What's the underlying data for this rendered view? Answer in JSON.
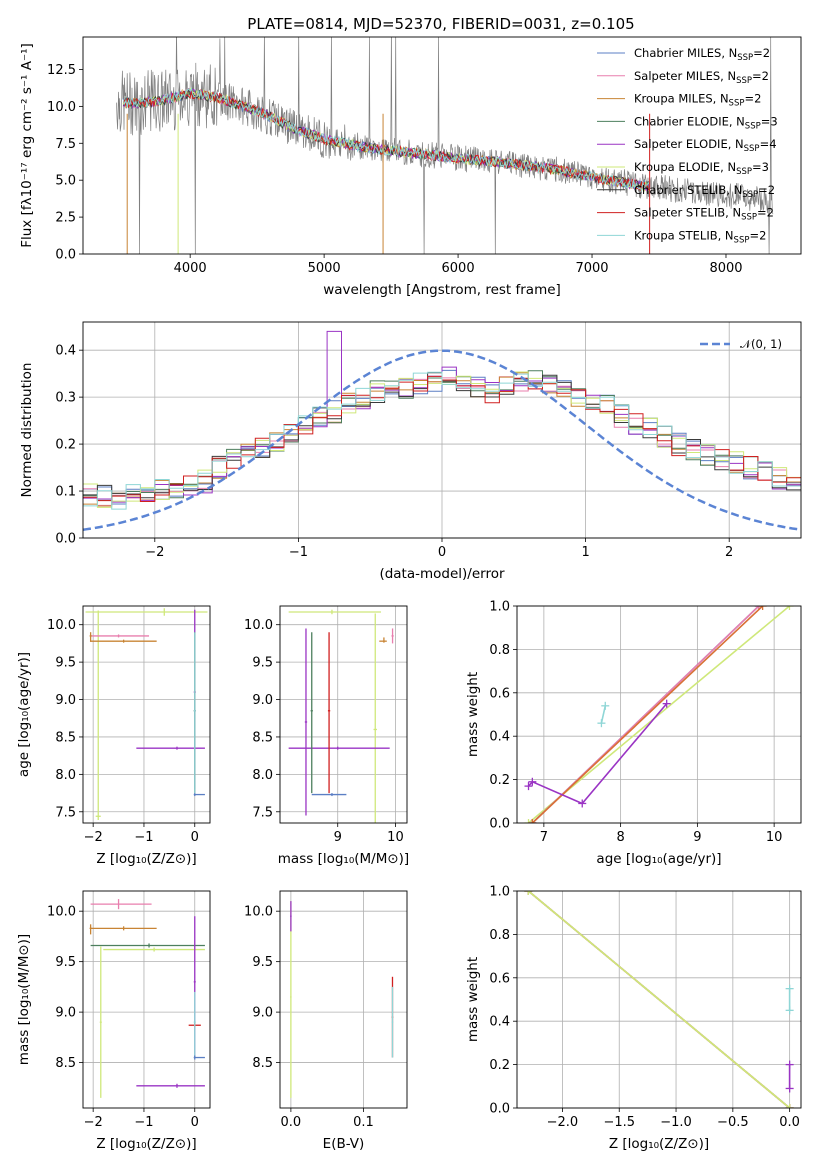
{
  "figure": {
    "title": "PLATE=0814, MJD=52370, FIBERID=0031, z=0.105"
  },
  "chart_data": [
    {
      "type": "line",
      "id": "spectrum",
      "xlabel": "wavelength [Angstrom, rest frame]",
      "ylabel": "Flux [fλ10⁻¹⁷ erg cm⁻² s⁻¹ A⁻¹]",
      "xlim": [
        3200,
        8560
      ],
      "ylim": [
        0,
        14.7
      ],
      "xticks": [
        4000,
        5000,
        6000,
        7000,
        8000
      ],
      "yticks": [
        0.0,
        2.5,
        5.0,
        7.5,
        10.0,
        12.5
      ],
      "ytick_labels": [
        "0.0",
        "2.5",
        "5.0",
        "7.5",
        "10.0",
        "12.5"
      ],
      "data_trend": {
        "x": [
          3450,
          3600,
          3800,
          4000,
          4200,
          4400,
          4600,
          4800,
          5000,
          5200,
          5400,
          5600,
          5800,
          6000,
          6200,
          6400,
          6600,
          6800,
          7000,
          7200,
          7400,
          7600,
          7800,
          8000,
          8200,
          8350
        ],
        "y": [
          10.3,
          10.2,
          10.4,
          10.9,
          10.6,
          10.0,
          9.3,
          8.4,
          7.8,
          7.4,
          7.1,
          6.9,
          6.7,
          6.5,
          6.3,
          6.1,
          5.9,
          5.6,
          5.2,
          4.9,
          4.6,
          4.4,
          4.2,
          4.0,
          3.8,
          3.5
        ]
      },
      "model_xrange": [
        3500,
        7430
      ],
      "data_color": "#7f7f7f",
      "legend_position": "upper right",
      "legend": [
        {
          "label": "Chabrier MILES, N",
          "sub": "SSP",
          "tail": "=2",
          "color": "#5b7fc4"
        },
        {
          "label": "Salpeter MILES, N",
          "sub": "SSP",
          "tail": "=2",
          "color": "#e87fae"
        },
        {
          "label": "Kroupa MILES, N",
          "sub": "SSP",
          "tail": "=2",
          "color": "#c88434"
        },
        {
          "label": "Chabrier ELODIE, N",
          "sub": "SSP",
          "tail": "=3",
          "color": "#4d7f5e"
        },
        {
          "label": "Salpeter ELODIE, N",
          "sub": "SSP",
          "tail": "=4",
          "color": "#9a34c4"
        },
        {
          "label": "Kroupa ELODIE, N",
          "sub": "SSP",
          "tail": "=3",
          "color": "#cfe87a"
        },
        {
          "label": "Chabrier STELIB, N",
          "sub": "SSP",
          "tail": "=2",
          "color": "#3a3a3a"
        },
        {
          "label": "Salpeter STELIB, N",
          "sub": "SSP",
          "tail": "=2",
          "color": "#d02020"
        },
        {
          "label": "Kroupa STELIB, N",
          "sub": "SSP",
          "tail": "=2",
          "color": "#8fd6d6"
        }
      ]
    },
    {
      "type": "step",
      "id": "residuals",
      "xlabel": "(data-model)/error",
      "ylabel": "Normed distribution",
      "xlim": [
        -2.5,
        2.5
      ],
      "ylim": [
        0,
        0.46
      ],
      "xticks": [
        -2,
        -1,
        0,
        1,
        2
      ],
      "xtick_labels": [
        "−2",
        "−1",
        "0",
        "1",
        "2"
      ],
      "yticks": [
        0.0,
        0.1,
        0.2,
        0.3,
        0.4
      ],
      "ytick_labels": [
        "0.0",
        "0.1",
        "0.2",
        "0.3",
        "0.4"
      ],
      "bin_width": 0.1,
      "bin_start": -2.5,
      "base_envelope": [
        0.092,
        0.09,
        0.085,
        0.09,
        0.1,
        0.105,
        0.11,
        0.115,
        0.12,
        0.15,
        0.17,
        0.18,
        0.19,
        0.21,
        0.225,
        0.24,
        0.255,
        0.27,
        0.285,
        0.3,
        0.31,
        0.315,
        0.32,
        0.33,
        0.335,
        0.34,
        0.33,
        0.32,
        0.31,
        0.32,
        0.33,
        0.34,
        0.33,
        0.31,
        0.3,
        0.29,
        0.28,
        0.26,
        0.245,
        0.23,
        0.215,
        0.2,
        0.185,
        0.175,
        0.165,
        0.16,
        0.15,
        0.14,
        0.125,
        0.11
      ],
      "reference": {
        "label": "𝒩(0, 1)",
        "color": "#5b84d4",
        "mean": 0,
        "sigma": 1
      },
      "legend_position": "upper right"
    },
    {
      "type": "errorbar",
      "id": "age-vs-Z",
      "xlabel": "Z [log₁₀(Z/Z⊙)]",
      "ylabel": "age  [log₁₀(age/yr)]",
      "xlim": [
        -2.2,
        0.3
      ],
      "ylim": [
        7.35,
        10.25
      ],
      "xticks": [
        -2,
        -1,
        0
      ],
      "xtick_labels": [
        "−2",
        "−1",
        "0"
      ],
      "yticks": [
        7.5,
        8.0,
        8.5,
        9.0,
        9.5,
        10.0
      ],
      "ytick_labels": [
        "7.5",
        "8.0",
        "8.5",
        "9.0",
        "9.5",
        "10.0"
      ],
      "points": [
        {
          "x": -0.6,
          "y": 10.17,
          "xerr": [
            1.55,
            0.85
          ],
          "yerr": [
            0.05,
            0.05
          ],
          "color": "#cfe87a"
        },
        {
          "x": -1.9,
          "y": 7.44,
          "xerr": [
            0.05,
            0.05
          ],
          "yerr": [
            0.05,
            2.75
          ],
          "color": "#cfe87a"
        },
        {
          "x": -1.5,
          "y": 9.85,
          "xerr": [
            0.55,
            0.6
          ],
          "yerr": [
            0.02,
            0.02
          ],
          "color": "#e87fae"
        },
        {
          "x": -1.4,
          "y": 9.78,
          "xerr": [
            0.65,
            0.65
          ],
          "yerr": [
            0.02,
            0.02
          ],
          "color": "#c88434"
        },
        {
          "x": -2.05,
          "y": 9.85,
          "xerr": [
            0.02,
            0.02
          ],
          "yerr": [
            0.08,
            0.05
          ],
          "color": "#c88434"
        },
        {
          "x": -0.35,
          "y": 8.35,
          "xerr": [
            0.8,
            0.55
          ],
          "yerr": [
            0.02,
            0.02
          ],
          "color": "#9a34c4"
        },
        {
          "x": 0.0,
          "y": 9.1,
          "xerr": [
            0.02,
            0.02
          ],
          "yerr": [
            1.3,
            1.1
          ],
          "color": "#9a34c4"
        },
        {
          "x": 0.0,
          "y": 8.85,
          "xerr": [
            0.02,
            0.02
          ],
          "yerr": [
            1.1,
            1.05
          ],
          "color": "#3a3a3a"
        },
        {
          "x": 0.0,
          "y": 7.73,
          "xerr": [
            0.02,
            0.2
          ],
          "yerr": [
            0.02,
            0.02
          ],
          "color": "#5b7fc4"
        },
        {
          "x": 0.0,
          "y": 8.85,
          "xerr": [
            0.02,
            0.02
          ],
          "yerr": [
            1.1,
            1.05
          ],
          "color": "#8fd6d6"
        }
      ]
    },
    {
      "type": "errorbar",
      "id": "age-vs-mass",
      "xlabel": "mass [log₁₀(M/M⊙)]",
      "ylabel": "",
      "xlim": [
        8.0,
        10.2
      ],
      "ylim": [
        7.35,
        10.25
      ],
      "xticks": [
        9,
        10
      ],
      "xtick_labels": [
        "9",
        "10"
      ],
      "yticks": [
        7.5,
        8.0,
        8.5,
        9.0,
        9.5,
        10.0
      ],
      "ytick_labels": [
        "7.5",
        "8.0",
        "8.5",
        "9.0",
        "9.5",
        "10.0"
      ],
      "points": [
        {
          "x": 8.9,
          "y": 10.17,
          "xerr": [
            0.75,
            0.85
          ],
          "yerr": [
            0.03,
            0.03
          ],
          "color": "#cfe87a"
        },
        {
          "x": 9.65,
          "y": 8.6,
          "xerr": [
            0.03,
            0.03
          ],
          "yerr": [
            1.25,
            1.55
          ],
          "color": "#cfe87a"
        },
        {
          "x": 9.95,
          "y": 9.85,
          "xerr": [
            0.02,
            0.02
          ],
          "yerr": [
            0.1,
            0.1
          ],
          "color": "#e87fae"
        },
        {
          "x": 9.8,
          "y": 9.78,
          "xerr": [
            0.08,
            0.05
          ],
          "yerr": [
            0.02,
            0.05
          ],
          "color": "#c88434"
        },
        {
          "x": 8.45,
          "y": 8.7,
          "xerr": [
            0.02,
            0.02
          ],
          "yerr": [
            1.25,
            1.25
          ],
          "color": "#9a34c4"
        },
        {
          "x": 9.0,
          "y": 8.35,
          "xerr": [
            0.85,
            0.9
          ],
          "yerr": [
            0.02,
            0.02
          ],
          "color": "#9a34c4"
        },
        {
          "x": 8.85,
          "y": 8.85,
          "xerr": [
            0.02,
            0.02
          ],
          "yerr": [
            1.1,
            1.05
          ],
          "color": "#d02020"
        },
        {
          "x": 8.55,
          "y": 8.85,
          "xerr": [
            0.02,
            0.02
          ],
          "yerr": [
            1.1,
            1.05
          ],
          "color": "#4d7f5e"
        },
        {
          "x": 8.9,
          "y": 7.73,
          "xerr": [
            0.35,
            0.25
          ],
          "yerr": [
            0.02,
            0.02
          ],
          "color": "#5b7fc4"
        }
      ]
    },
    {
      "type": "line",
      "id": "weight-vs-age",
      "xlabel": "age  [log₁₀(age/yr)]",
      "ylabel": "mass weight",
      "xlim": [
        6.65,
        10.35
      ],
      "ylim": [
        0,
        1.0
      ],
      "xticks": [
        7,
        8,
        9,
        10
      ],
      "xtick_labels": [
        "7",
        "8",
        "9",
        "10"
      ],
      "yticks": [
        0.0,
        0.2,
        0.4,
        0.6,
        0.8,
        1.0
      ],
      "ytick_labels": [
        "0.0",
        "0.2",
        "0.4",
        "0.6",
        "0.8",
        "1.0"
      ],
      "series": [
        {
          "color": "#cfe87a",
          "x": [
            6.8,
            10.2
          ],
          "y": [
            0.0,
            1.0
          ]
        },
        {
          "color": "#5b7fc4",
          "x": [
            6.85,
            9.8
          ],
          "y": [
            0.0,
            1.0
          ]
        },
        {
          "color": "#e87fae",
          "x": [
            6.85,
            9.8
          ],
          "y": [
            0.0,
            1.0
          ]
        },
        {
          "color": "#d97035",
          "x": [
            6.85,
            9.85
          ],
          "y": [
            0.0,
            1.0
          ]
        },
        {
          "color": "#9a34c4",
          "x": [
            6.8,
            6.85,
            7.5,
            8.6
          ],
          "y": [
            0.17,
            0.19,
            0.09,
            0.55
          ]
        },
        {
          "color": "#8fd6d6",
          "x": [
            7.75,
            7.8
          ],
          "y": [
            0.46,
            0.54
          ]
        }
      ]
    },
    {
      "type": "errorbar",
      "id": "mass-vs-Z",
      "xlabel": "Z [log₁₀(Z/Z⊙)]",
      "ylabel": "mass [log₁₀(M/M⊙)]",
      "xlim": [
        -2.2,
        0.3
      ],
      "ylim": [
        8.05,
        10.2
      ],
      "xticks": [
        -2,
        -1,
        0
      ],
      "xtick_labels": [
        "−2",
        "−1",
        "0"
      ],
      "yticks": [
        8.5,
        9.0,
        9.5,
        10.0
      ],
      "ytick_labels": [
        "8.5",
        "9.0",
        "9.5",
        "10.0"
      ],
      "points": [
        {
          "x": -1.5,
          "y": 10.07,
          "xerr": [
            0.55,
            0.65
          ],
          "yerr": [
            0.05,
            0.05
          ],
          "color": "#e87fae"
        },
        {
          "x": -1.4,
          "y": 9.83,
          "xerr": [
            0.65,
            0.65
          ],
          "yerr": [
            0.02,
            0.02
          ],
          "color": "#c88434"
        },
        {
          "x": -2.05,
          "y": 9.83,
          "xerr": [
            0.02,
            0.02
          ],
          "yerr": [
            0.06,
            0.04
          ],
          "color": "#c88434"
        },
        {
          "x": -0.9,
          "y": 9.66,
          "xerr": [
            1.15,
            1.1
          ],
          "yerr": [
            0.02,
            0.02
          ],
          "color": "#4d7f5e"
        },
        {
          "x": -0.8,
          "y": 9.62,
          "xerr": [
            1.0,
            1.0
          ],
          "yerr": [
            0.02,
            0.02
          ],
          "color": "#cfe87a"
        },
        {
          "x": -1.85,
          "y": 8.9,
          "xerr": [
            0.02,
            0.02
          ],
          "yerr": [
            0.75,
            0.75
          ],
          "color": "#cfe87a"
        },
        {
          "x": -0.35,
          "y": 8.27,
          "xerr": [
            0.8,
            0.55
          ],
          "yerr": [
            0.02,
            0.02
          ],
          "color": "#9a34c4"
        },
        {
          "x": 0.0,
          "y": 9.3,
          "xerr": [
            0.02,
            0.02
          ],
          "yerr": [
            0.75,
            0.65
          ],
          "color": "#9a34c4"
        },
        {
          "x": 0.0,
          "y": 8.87,
          "xerr": [
            0.12,
            0.12
          ],
          "yerr": [
            0.02,
            0.02
          ],
          "color": "#d02020"
        },
        {
          "x": 0.0,
          "y": 8.9,
          "xerr": [
            0.02,
            0.02
          ],
          "yerr": [
            0.35,
            0.3
          ],
          "color": "#8fd6d6"
        },
        {
          "x": 0.0,
          "y": 8.55,
          "xerr": [
            0.02,
            0.2
          ],
          "yerr": [
            0.02,
            0.02
          ],
          "color": "#5b7fc4"
        }
      ]
    },
    {
      "type": "errorbar",
      "id": "mass-vs-EBV",
      "xlabel": "E(B-V)",
      "ylabel": "",
      "xlim": [
        -0.015,
        0.16
      ],
      "ylim": [
        8.05,
        10.2
      ],
      "xticks": [
        0.0,
        0.1
      ],
      "xtick_labels": [
        "0.0",
        "0.1"
      ],
      "yticks": [
        8.5,
        9.0,
        9.5,
        10.0
      ],
      "ytick_labels": [
        "8.5",
        "9.0",
        "9.5",
        "10.0"
      ],
      "points": [
        {
          "x": 0.0,
          "y": 9.15,
          "xerr": [
            0.001,
            0.001
          ],
          "yerr": [
            1.0,
            0.95
          ],
          "color": "#cfe87a"
        },
        {
          "x": 0.0,
          "y": 9.95,
          "xerr": [
            0.001,
            0.001
          ],
          "yerr": [
            0.15,
            0.15
          ],
          "color": "#9a34c4"
        },
        {
          "x": 0.14,
          "y": 8.95,
          "xerr": [
            0.001,
            0.001
          ],
          "yerr": [
            0.4,
            0.4
          ],
          "color": "#d02020"
        },
        {
          "x": 0.14,
          "y": 8.9,
          "xerr": [
            0.001,
            0.001
          ],
          "yerr": [
            0.35,
            0.35
          ],
          "color": "#8fd6d6"
        }
      ]
    },
    {
      "type": "line",
      "id": "weight-vs-Z",
      "xlabel": "Z [log₁₀(Z/Z⊙)]",
      "ylabel": "mass weight",
      "xlim": [
        -2.4,
        0.1
      ],
      "ylim": [
        0,
        1.0
      ],
      "xticks": [
        -2.0,
        -1.5,
        -1.0,
        -0.5,
        0.0
      ],
      "xtick_labels": [
        "−2.0",
        "−1.5",
        "−1.0",
        "−0.5",
        "0.0"
      ],
      "yticks": [
        0.0,
        0.2,
        0.4,
        0.6,
        0.8,
        1.0
      ],
      "ytick_labels": [
        "0.0",
        "0.2",
        "0.4",
        "0.6",
        "0.8",
        "1.0"
      ],
      "series": [
        {
          "color": "#5b7fc4",
          "x": [
            -2.3,
            0.0
          ],
          "y": [
            1.0,
            0.0
          ]
        },
        {
          "color": "#e87fae",
          "x": [
            -2.3,
            0.0
          ],
          "y": [
            1.0,
            0.0
          ]
        },
        {
          "color": "#c88434",
          "x": [
            -2.3,
            0.0
          ],
          "y": [
            1.0,
            0.0
          ]
        },
        {
          "color": "#cfe87a",
          "x": [
            -2.3,
            0.0
          ],
          "y": [
            1.0,
            0.0
          ]
        },
        {
          "color": "#9a34c4",
          "x": [
            0.0,
            0.0
          ],
          "y": [
            0.09,
            0.2
          ]
        },
        {
          "color": "#8fd6d6",
          "x": [
            0.0,
            0.0
          ],
          "y": [
            0.45,
            0.55
          ]
        }
      ]
    }
  ]
}
